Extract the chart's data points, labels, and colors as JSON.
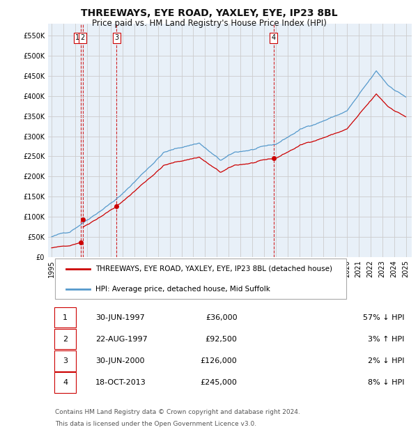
{
  "title": "THREEWAYS, EYE ROAD, YAXLEY, EYE, IP23 8BL",
  "subtitle": "Price paid vs. HM Land Registry's House Price Index (HPI)",
  "legend_label_red": "THREEWAYS, EYE ROAD, YAXLEY, EYE, IP23 8BL (detached house)",
  "legend_label_blue": "HPI: Average price, detached house, Mid Suffolk",
  "footer1": "Contains HM Land Registry data © Crown copyright and database right 2024.",
  "footer2": "This data is licensed under the Open Government Licence v3.0.",
  "transactions": [
    {
      "num": 1,
      "date": "30-JUN-1997",
      "price": "£36,000",
      "pct": "57% ↓ HPI",
      "year": 1997.5,
      "value": 36000
    },
    {
      "num": 2,
      "date": "22-AUG-1997",
      "price": "£92,500",
      "pct": "3% ↑ HPI",
      "year": 1997.64,
      "value": 92500
    },
    {
      "num": 3,
      "date": "30-JUN-2000",
      "price": "£126,000",
      "pct": "2% ↓ HPI",
      "year": 2000.5,
      "value": 126000
    },
    {
      "num": 4,
      "date": "18-OCT-2013",
      "price": "£245,000",
      "pct": "8% ↓ HPI",
      "year": 2013.8,
      "value": 245000
    }
  ],
  "ylim": [
    0,
    580000
  ],
  "yticks": [
    0,
    50000,
    100000,
    150000,
    200000,
    250000,
    300000,
    350000,
    400000,
    450000,
    500000,
    550000
  ],
  "ytick_labels": [
    "£0",
    "£50K",
    "£100K",
    "£150K",
    "£200K",
    "£250K",
    "£300K",
    "£350K",
    "£400K",
    "£450K",
    "£500K",
    "£550K"
  ],
  "xlim_start": 1994.7,
  "xlim_end": 2025.5,
  "xticks": [
    1995,
    1996,
    1997,
    1998,
    1999,
    2000,
    2001,
    2002,
    2003,
    2004,
    2005,
    2006,
    2007,
    2008,
    2009,
    2010,
    2011,
    2012,
    2013,
    2014,
    2015,
    2016,
    2017,
    2018,
    2019,
    2020,
    2021,
    2022,
    2023,
    2024,
    2025
  ],
  "hpi_color": "#5599cc",
  "price_color": "#cc0000",
  "vline_color": "#cc0000",
  "grid_color": "#cccccc",
  "background_color": "#ffffff",
  "plot_bg_color": "#e8f0f8"
}
